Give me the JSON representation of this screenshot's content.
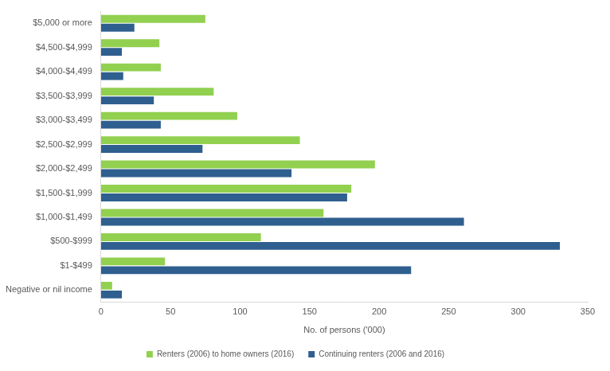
{
  "chart_data": {
    "type": "bar",
    "orientation": "horizontal",
    "categories": [
      "$5,000 or more",
      "$4,500-$4,999",
      "$4,000-$4,499",
      "$3,500-$3,999",
      "$3,000-$3,499",
      "$2,500-$2,999",
      "$2,000-$2,499",
      "$1,500-$1,999",
      "$1,000-$1,499",
      "$500-$999",
      "$1-$499",
      "Negative or nil income"
    ],
    "series": [
      {
        "name": "Renters (2006) to home owners (2016)",
        "color": "#92d050",
        "values": [
          75,
          42,
          43,
          81,
          98,
          143,
          197,
          180,
          160,
          115,
          46,
          8
        ]
      },
      {
        "name": "Continuing renters (2006 and 2016)",
        "color": "#2f5f8f",
        "values": [
          24,
          15,
          16,
          38,
          43,
          73,
          137,
          177,
          261,
          330,
          223,
          15
        ]
      }
    ],
    "x_label": "No. of persons ('000)",
    "xlim": [
      0,
      350
    ],
    "xticks": [
      0,
      50,
      100,
      150,
      200,
      250,
      300,
      350
    ],
    "grid": false,
    "legend": "bottom"
  }
}
